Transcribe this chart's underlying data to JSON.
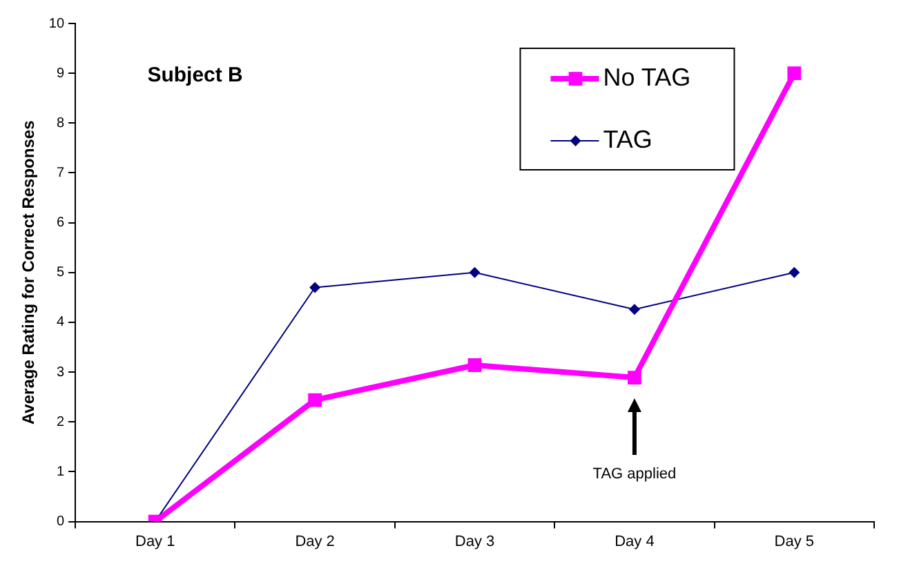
{
  "chart_data": {
    "type": "line",
    "title": "Subject B",
    "ylabel": "Average Rating for Correct Responses",
    "categories": [
      "Day 1",
      "Day 2",
      "Day 3",
      "Day 4",
      "Day 5"
    ],
    "series": [
      {
        "name": "No TAG",
        "color": "#ff00ff",
        "marker": "square",
        "values": [
          0,
          2.44,
          3.14,
          2.89,
          9.0
        ]
      },
      {
        "name": "TAG",
        "color": "#000080",
        "marker": "diamond",
        "values": [
          0,
          4.7,
          5.0,
          4.26,
          5.0
        ]
      }
    ],
    "ylim": [
      0,
      10
    ],
    "yticks": [
      0,
      1,
      2,
      3,
      4,
      5,
      6,
      7,
      8,
      9,
      10
    ],
    "grid": false,
    "legend": "top right",
    "annotations": [
      "TAG applied"
    ]
  }
}
